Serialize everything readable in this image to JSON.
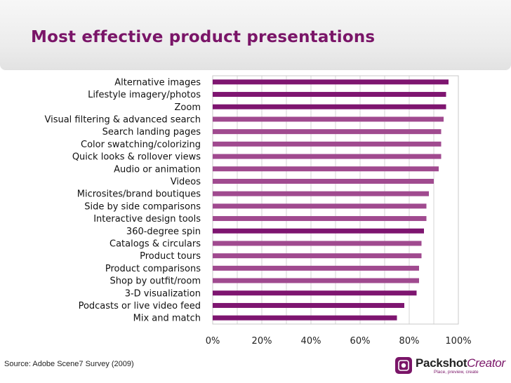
{
  "page": {
    "title": "Most effective product presentations",
    "source": "Source: Adobe Scene7 Survey (2009)"
  },
  "logo": {
    "brand_main": "Packshot",
    "brand_accent": "Creator",
    "tagline": "Place, preview, create",
    "icon": "packshot-logo-icon"
  },
  "colors": {
    "title": "#7a1568",
    "bar_dark": "#7e1570",
    "bar_light": "#a04a8f",
    "grid": "#d6d6d6"
  },
  "chart_data": {
    "type": "bar",
    "orientation": "horizontal",
    "title": "Most effective product presentations",
    "xlabel": "",
    "ylabel": "",
    "xlim": [
      0,
      100
    ],
    "x_ticks": [
      "0%",
      "20%",
      "40%",
      "60%",
      "80%",
      "100%"
    ],
    "grid": true,
    "categories": [
      "Alternative images",
      "Lifestyle imagery/photos",
      "Zoom",
      "Visual filtering & advanced search",
      "Search landing pages",
      "Color swatching/colorizing",
      "Quick looks & rollover views",
      "Audio or animation",
      "Videos",
      "Microsites/brand boutiques",
      "Side by side comparisons",
      "Interactive design tools",
      "360-degree spin",
      "Catalogs & circulars",
      "Product tours",
      "Product comparisons",
      "Shop by outfit/room",
      "3-D visualization",
      "Podcasts or live video feed",
      "Mix and match"
    ],
    "values": [
      96,
      95,
      95,
      94,
      93,
      93,
      93,
      92,
      90,
      88,
      87,
      87,
      86,
      85,
      85,
      84,
      84,
      83,
      78,
      75
    ],
    "highlighted": [
      true,
      true,
      true,
      false,
      false,
      false,
      false,
      false,
      false,
      false,
      false,
      false,
      true,
      false,
      false,
      false,
      false,
      true,
      true,
      true
    ]
  }
}
